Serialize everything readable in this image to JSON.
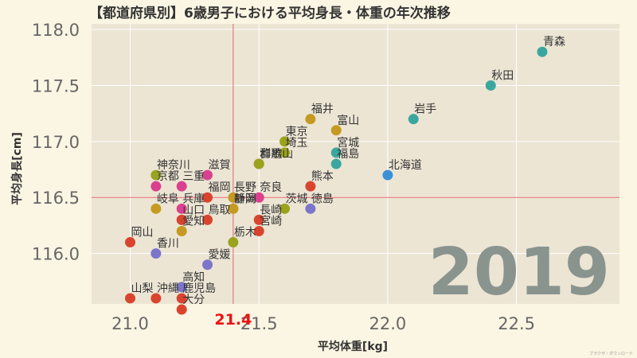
{
  "chart_data": {
    "type": "scatter",
    "title": "【都道府県別】6歳男子における平均身長・体重の年次推移",
    "xlabel": "平均体重[kg]",
    "ylabel": "平均身長[cm]",
    "xlim": [
      20.85,
      22.9
    ],
    "ylim": [
      115.55,
      118.05
    ],
    "xticks": [
      21.0,
      21.5,
      22.0,
      22.5
    ],
    "yticks": [
      116.0,
      116.5,
      117.0,
      117.5,
      118.0
    ],
    "xtick_labels": [
      "21.0",
      "21.5",
      "22.0",
      "22.5"
    ],
    "ytick_labels": [
      "116.0",
      "116.5",
      "117.0",
      "117.5",
      "118.0"
    ],
    "mean_x": 21.4,
    "mean_y": 116.5,
    "mean_x_label": "21.4",
    "year": "2019",
    "credit": "ブラウザ・ダウンロード",
    "colors": {
      "background": "#fbf5e3",
      "plot_bg": "#ece5d4",
      "grid": "#ffffff",
      "mean_line": "#e8646e",
      "mean_label": "#ee1111"
    },
    "points": [
      {
        "name": "青森",
        "x": 22.6,
        "y": 117.8,
        "color": "#3aa79e"
      },
      {
        "name": "秋田",
        "x": 22.4,
        "y": 117.5,
        "color": "#3aa79e"
      },
      {
        "name": "岩手",
        "x": 22.1,
        "y": 117.2,
        "color": "#3aa79e"
      },
      {
        "name": "北海道",
        "x": 22.0,
        "y": 116.7,
        "color": "#3b8fd6"
      },
      {
        "name": "福井",
        "x": 21.7,
        "y": 117.2,
        "color": "#c49a22"
      },
      {
        "name": "富山",
        "x": 21.8,
        "y": 117.1,
        "color": "#c49a22"
      },
      {
        "name": "東京",
        "x": 21.6,
        "y": 117.0,
        "color": "#9aa31c"
      },
      {
        "name": "埼玉",
        "x": 21.6,
        "y": 116.9,
        "color": "#9aa31c"
      },
      {
        "name": "宮城",
        "x": 21.8,
        "y": 116.9,
        "color": "#3aa79e"
      },
      {
        "name": "福島",
        "x": 21.8,
        "y": 116.8,
        "color": "#3aa79e"
      },
      {
        "name": "和歌山",
        "x": 21.5,
        "y": 116.8,
        "color": "#b2407a"
      },
      {
        "name": "群馬",
        "x": 21.5,
        "y": 116.8,
        "color": "#9aa31c"
      },
      {
        "name": "神奈川",
        "x": 21.1,
        "y": 116.7,
        "color": "#9aa31c"
      },
      {
        "name": "滋賀",
        "x": 21.3,
        "y": 116.7,
        "color": "#d9418e"
      },
      {
        "name": "京都",
        "x": 21.1,
        "y": 116.6,
        "color": "#d9418e"
      },
      {
        "name": "三重",
        "x": 21.2,
        "y": 116.6,
        "color": "#d9418e"
      },
      {
        "name": "熊本",
        "x": 21.7,
        "y": 116.6,
        "color": "#d9442e"
      },
      {
        "name": "福岡",
        "x": 21.3,
        "y": 116.5,
        "color": "#d9442e"
      },
      {
        "name": "長野",
        "x": 21.4,
        "y": 116.5,
        "color": "#c49a22"
      },
      {
        "name": "奈良",
        "x": 21.5,
        "y": 116.5,
        "color": "#d9418e"
      },
      {
        "name": "岐阜",
        "x": 21.1,
        "y": 116.4,
        "color": "#c49a22"
      },
      {
        "name": "兵庫",
        "x": 21.2,
        "y": 116.4,
        "color": "#d9418e"
      },
      {
        "name": "静岡",
        "x": 21.4,
        "y": 116.4,
        "color": "#c49a22"
      },
      {
        "name": "新潟",
        "x": 21.4,
        "y": 116.4,
        "color": "#c49a22"
      },
      {
        "name": "茨城",
        "x": 21.6,
        "y": 116.4,
        "color": "#9aa31c"
      },
      {
        "name": "徳島",
        "x": 21.7,
        "y": 116.4,
        "color": "#7b76c9"
      },
      {
        "name": "山口",
        "x": 21.2,
        "y": 116.3,
        "color": "#d9442e"
      },
      {
        "name": "鳥取",
        "x": 21.3,
        "y": 116.3,
        "color": "#d9442e"
      },
      {
        "name": "長崎",
        "x": 21.5,
        "y": 116.3,
        "color": "#d9442e"
      },
      {
        "name": "愛知",
        "x": 21.2,
        "y": 116.2,
        "color": "#c49a22"
      },
      {
        "name": "宮崎",
        "x": 21.5,
        "y": 116.2,
        "color": "#d9442e"
      },
      {
        "name": "岡山",
        "x": 21.0,
        "y": 116.1,
        "color": "#d9442e"
      },
      {
        "name": "栃木",
        "x": 21.4,
        "y": 116.1,
        "color": "#9aa31c"
      },
      {
        "name": "香川",
        "x": 21.1,
        "y": 116.0,
        "color": "#7b76c9"
      },
      {
        "name": "愛媛",
        "x": 21.3,
        "y": 115.9,
        "color": "#7b76c9"
      },
      {
        "name": "高知",
        "x": 21.2,
        "y": 115.7,
        "color": "#7b76c9"
      },
      {
        "name": "山梨",
        "x": 21.0,
        "y": 115.6,
        "color": "#d9442e"
      },
      {
        "name": "沖縄",
        "x": 21.1,
        "y": 115.6,
        "color": "#d9442e"
      },
      {
        "name": "鹿児島",
        "x": 21.2,
        "y": 115.6,
        "color": "#d9442e"
      },
      {
        "name": "大分",
        "x": 21.2,
        "y": 115.5,
        "color": "#d9442e"
      }
    ]
  }
}
